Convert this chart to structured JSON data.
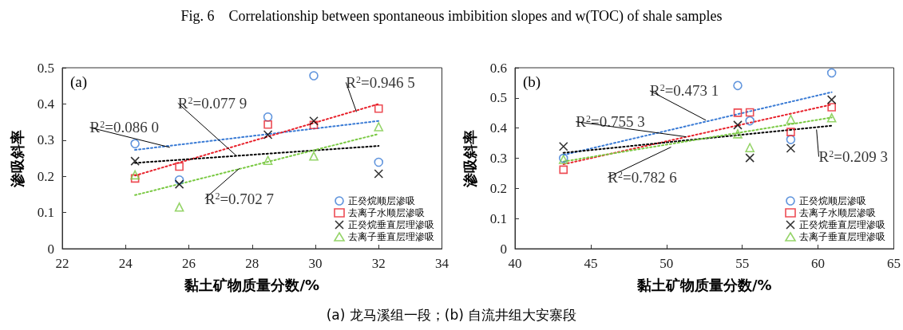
{
  "chart_data": [
    {
      "type": "scatter",
      "title": "Fig. 6    Correlationship between spontaneous imbibition slopes and w(TOC) of shale samples",
      "xlabel": "黏土矿物质量分数/%",
      "ylabel": "渗吸斜率",
      "xlim": [
        22,
        34
      ],
      "xticks": [
        22,
        24,
        26,
        28,
        30,
        32,
        34
      ],
      "ylim": [
        0,
        0.5
      ],
      "yticks": [
        0,
        0.1,
        0.2,
        0.3,
        0.4,
        0.5
      ],
      "grid": false,
      "legend": "bottom right",
      "x": [
        24.3,
        25.7,
        28.5,
        29.95,
        32
      ],
      "series": [
        {
          "name": "正癸烷顺层渗吸",
          "color": "#3a7bd5",
          "marker": "circle",
          "values": [
            0.29,
            0.19,
            0.364,
            0.478,
            0.239
          ]
        },
        {
          "name": "去离子水顺层渗吸",
          "color": "#e8202a",
          "marker": "square",
          "values": [
            0.194,
            0.227,
            0.343,
            0.342,
            0.387
          ]
        },
        {
          "name": "正癸烷垂直层理渗吸",
          "color": "#000000",
          "marker": "cross",
          "values": [
            0.242,
            0.178,
            0.315,
            0.353,
            0.207
          ]
        },
        {
          "name": "去离子垂直层理渗吸",
          "color": "#7ac943",
          "marker": "triangle",
          "values": [
            0.204,
            0.115,
            0.244,
            0.256,
            0.337
          ]
        },
        {
          "type": "line",
          "color": "#3a7bd5",
          "x": [
            24.3,
            32
          ],
          "values": [
            0.273,
            0.353
          ],
          "line_style": "dotted",
          "marker": "none"
        },
        {
          "type": "line",
          "color": "#e8202a",
          "x": [
            24.3,
            32
          ],
          "values": [
            0.202,
            0.4
          ],
          "line_style": "dotted",
          "marker": "none"
        },
        {
          "type": "line",
          "color": "#000000",
          "x": [
            24.3,
            32
          ],
          "values": [
            0.237,
            0.284
          ],
          "line_style": "dotted",
          "marker": "none"
        },
        {
          "type": "line",
          "color": "#7ac943",
          "x": [
            24.3,
            32
          ],
          "values": [
            0.148,
            0.317
          ],
          "line_style": "dotted",
          "marker": "none"
        }
      ],
      "annotations": [
        "(a)",
        "(a) 龙马溪组一段；(b) 自流井组大安寨段",
        {
          "text": "R$^{2}$=0.086 0",
          "x": 25.4,
          "y": 0.28
        },
        {
          "text": "R$^{2}$=0.077 9",
          "x": 27.5,
          "y": 0.257
        },
        {
          "text": "R$^{2}$=0.702 7",
          "x": 27.6,
          "y": 0.222
        },
        {
          "text": "R$^{2}$=0.946 5",
          "x": 31.3,
          "y": 0.378
        }
      ]
    },
    {
      "type": "scatter",
      "xlabel": "黏土矿物质量分数/%",
      "ylabel": "渗吸斜率",
      "xlim": [
        40,
        65
      ],
      "xticks": [
        40,
        45,
        50,
        55,
        60,
        65
      ],
      "ylim": [
        0,
        0.6
      ],
      "yticks": [
        0,
        0.1,
        0.2,
        0.3,
        0.4,
        0.5,
        0.6
      ],
      "grid": false,
      "legend": "bottom right",
      "x": [
        43.2,
        54.7,
        55.5,
        58.2,
        60.9
      ],
      "series": [
        {
          "name": "正癸烷顺层渗吸",
          "color": "#3a7bd5",
          "marker": "circle",
          "values": [
            0.3,
            0.541,
            0.424,
            0.362,
            0.583
          ]
        },
        {
          "name": "去离子水顺层渗吸",
          "color": "#e8202a",
          "marker": "square",
          "values": [
            0.262,
            0.451,
            0.452,
            0.387,
            0.469
          ]
        },
        {
          "name": "正癸烷垂直层理渗吸",
          "color": "#000000",
          "marker": "cross",
          "values": [
            0.339,
            0.41,
            0.301,
            0.333,
            0.494
          ]
        },
        {
          "name": "去离子垂直层理渗吸",
          "color": "#7ac943",
          "marker": "triangle",
          "values": [
            0.296,
            0.381,
            0.335,
            0.429,
            0.434
          ]
        },
        {
          "type": "line",
          "color": "#3a7bd5",
          "x": [
            43.2,
            60.9
          ],
          "values": [
            0.311,
            0.519
          ],
          "line_style": "dotted",
          "marker": "none"
        },
        {
          "type": "line",
          "color": "#e8202a",
          "x": [
            43.2,
            60.9
          ],
          "values": [
            0.28,
            0.478
          ],
          "line_style": "dotted",
          "marker": "none"
        },
        {
          "type": "line",
          "color": "#000000",
          "x": [
            43.2,
            60.9
          ],
          "values": [
            0.318,
            0.408
          ],
          "line_style": "dotted",
          "marker": "none"
        },
        {
          "type": "line",
          "color": "#7ac943",
          "x": [
            43.2,
            60.9
          ],
          "values": [
            0.289,
            0.435
          ],
          "line_style": "dotted",
          "marker": "none"
        }
      ],
      "annotations": [
        "(b)",
        {
          "text": "R$^{2}$=0.473 1",
          "x": 52.6,
          "y": 0.426
        },
        {
          "text": "R$^{2}$=0.755 3",
          "x": 51.3,
          "y": 0.371
        },
        {
          "text": "R$^{2}$=0.782 6",
          "x": 50.3,
          "y": 0.337
        },
        {
          "text": "R$^{2}$=0.209 3",
          "x": 59.9,
          "y": 0.395
        }
      ]
    }
  ]
}
